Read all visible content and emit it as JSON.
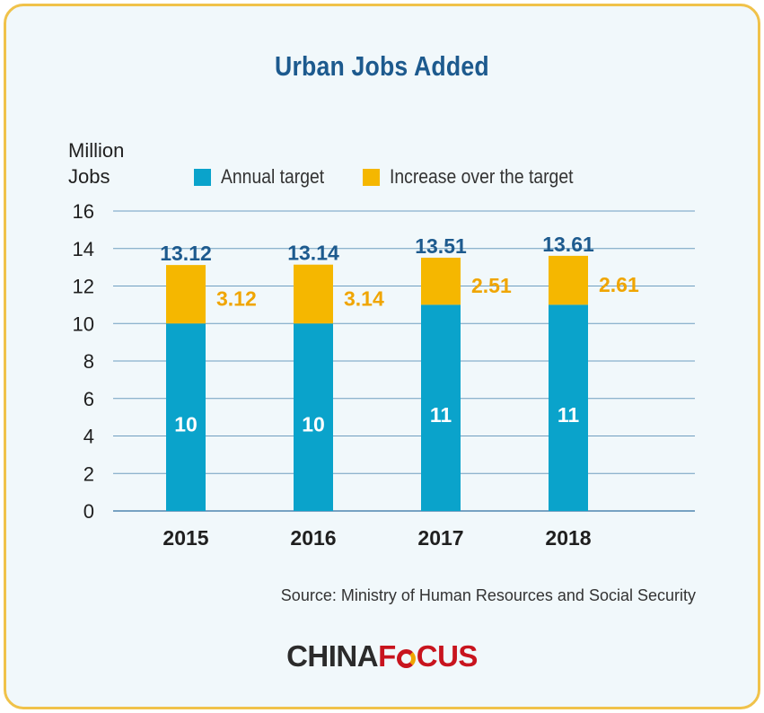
{
  "colors": {
    "annual_target": "#0aa3cb",
    "increase": "#f5b700",
    "total_label": "#1d5a8e",
    "increase_label": "#f0a500",
    "axis_text": "#1f1f1f",
    "grid": "#6f9ec0",
    "border": "#f0c24a"
  },
  "chart_data": {
    "type": "bar",
    "stacked": true,
    "title": "Urban Jobs Added",
    "ylabel": "Million Jobs",
    "ylabel_lines": [
      "Million",
      "Jobs"
    ],
    "categories": [
      "2015",
      "2016",
      "2017",
      "2018"
    ],
    "series": [
      {
        "name": "Annual target",
        "values": [
          10,
          10,
          11,
          11
        ],
        "labels": [
          "10",
          "10",
          "11",
          "11"
        ]
      },
      {
        "name": "Increase over the target",
        "values": [
          3.12,
          3.14,
          2.51,
          2.61
        ],
        "labels": [
          "3.12",
          "3.14",
          "2.51",
          "2.61"
        ]
      }
    ],
    "totals": [
      13.12,
      13.14,
      13.51,
      13.61
    ],
    "total_labels": [
      "13.12",
      "13.14",
      "13.51",
      "13.61"
    ],
    "ylim": [
      0,
      16
    ],
    "yticks": [
      0,
      2,
      4,
      6,
      8,
      10,
      12,
      14,
      16
    ],
    "grid": true,
    "legend_position": "top"
  },
  "source": "Source: Ministry of Human Resources and Social Security",
  "logo": {
    "part1": "CHINA",
    "part2_letter1": "F",
    "part2_rest": "CUS"
  }
}
